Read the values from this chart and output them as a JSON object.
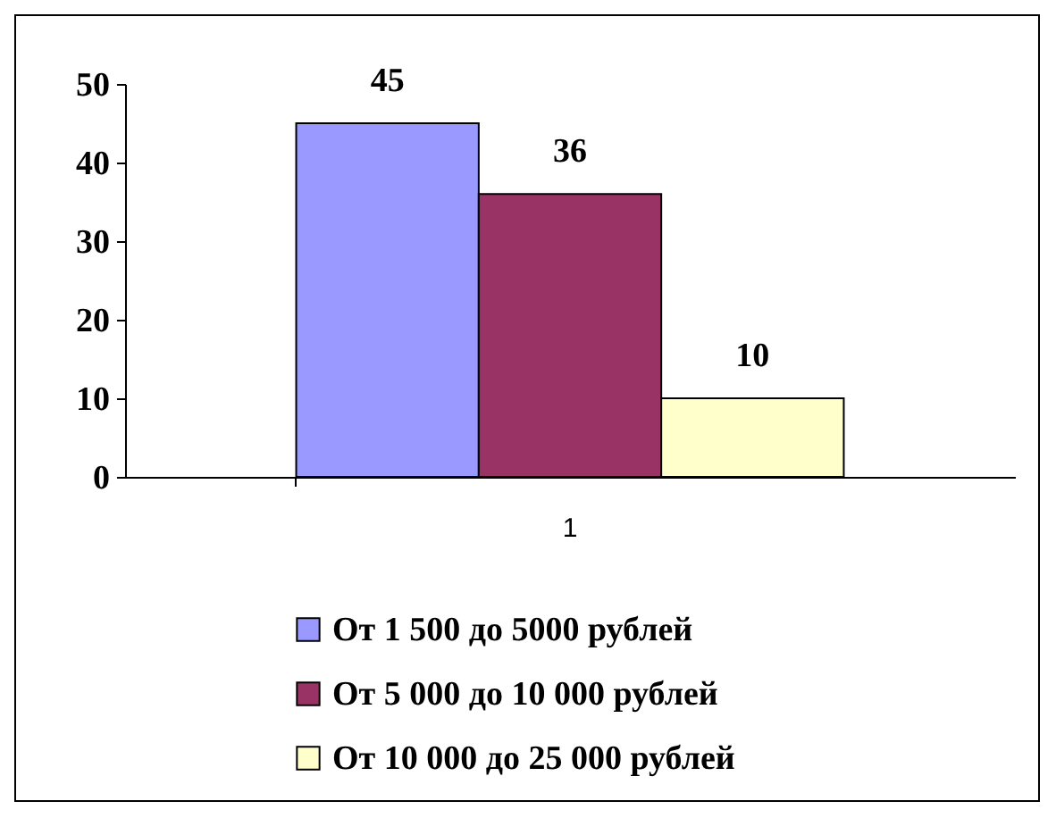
{
  "chart_data": {
    "type": "bar",
    "categories": [
      "1"
    ],
    "series": [
      {
        "name": "От 1 500 до 5000 рублей",
        "color": "#9999ff",
        "values": [
          45
        ]
      },
      {
        "name": "От 5 000 до 10 000 рублей",
        "color": "#993366",
        "values": [
          36
        ]
      },
      {
        "name": "От 10 000 до 25 000 рублей",
        "color": "#ffffcc",
        "values": [
          10
        ]
      }
    ],
    "ylim": [
      0,
      50
    ],
    "yticks": [
      0,
      10,
      20,
      30,
      40,
      50
    ],
    "grid": false,
    "legend": "bottom",
    "data_labels": true
  }
}
